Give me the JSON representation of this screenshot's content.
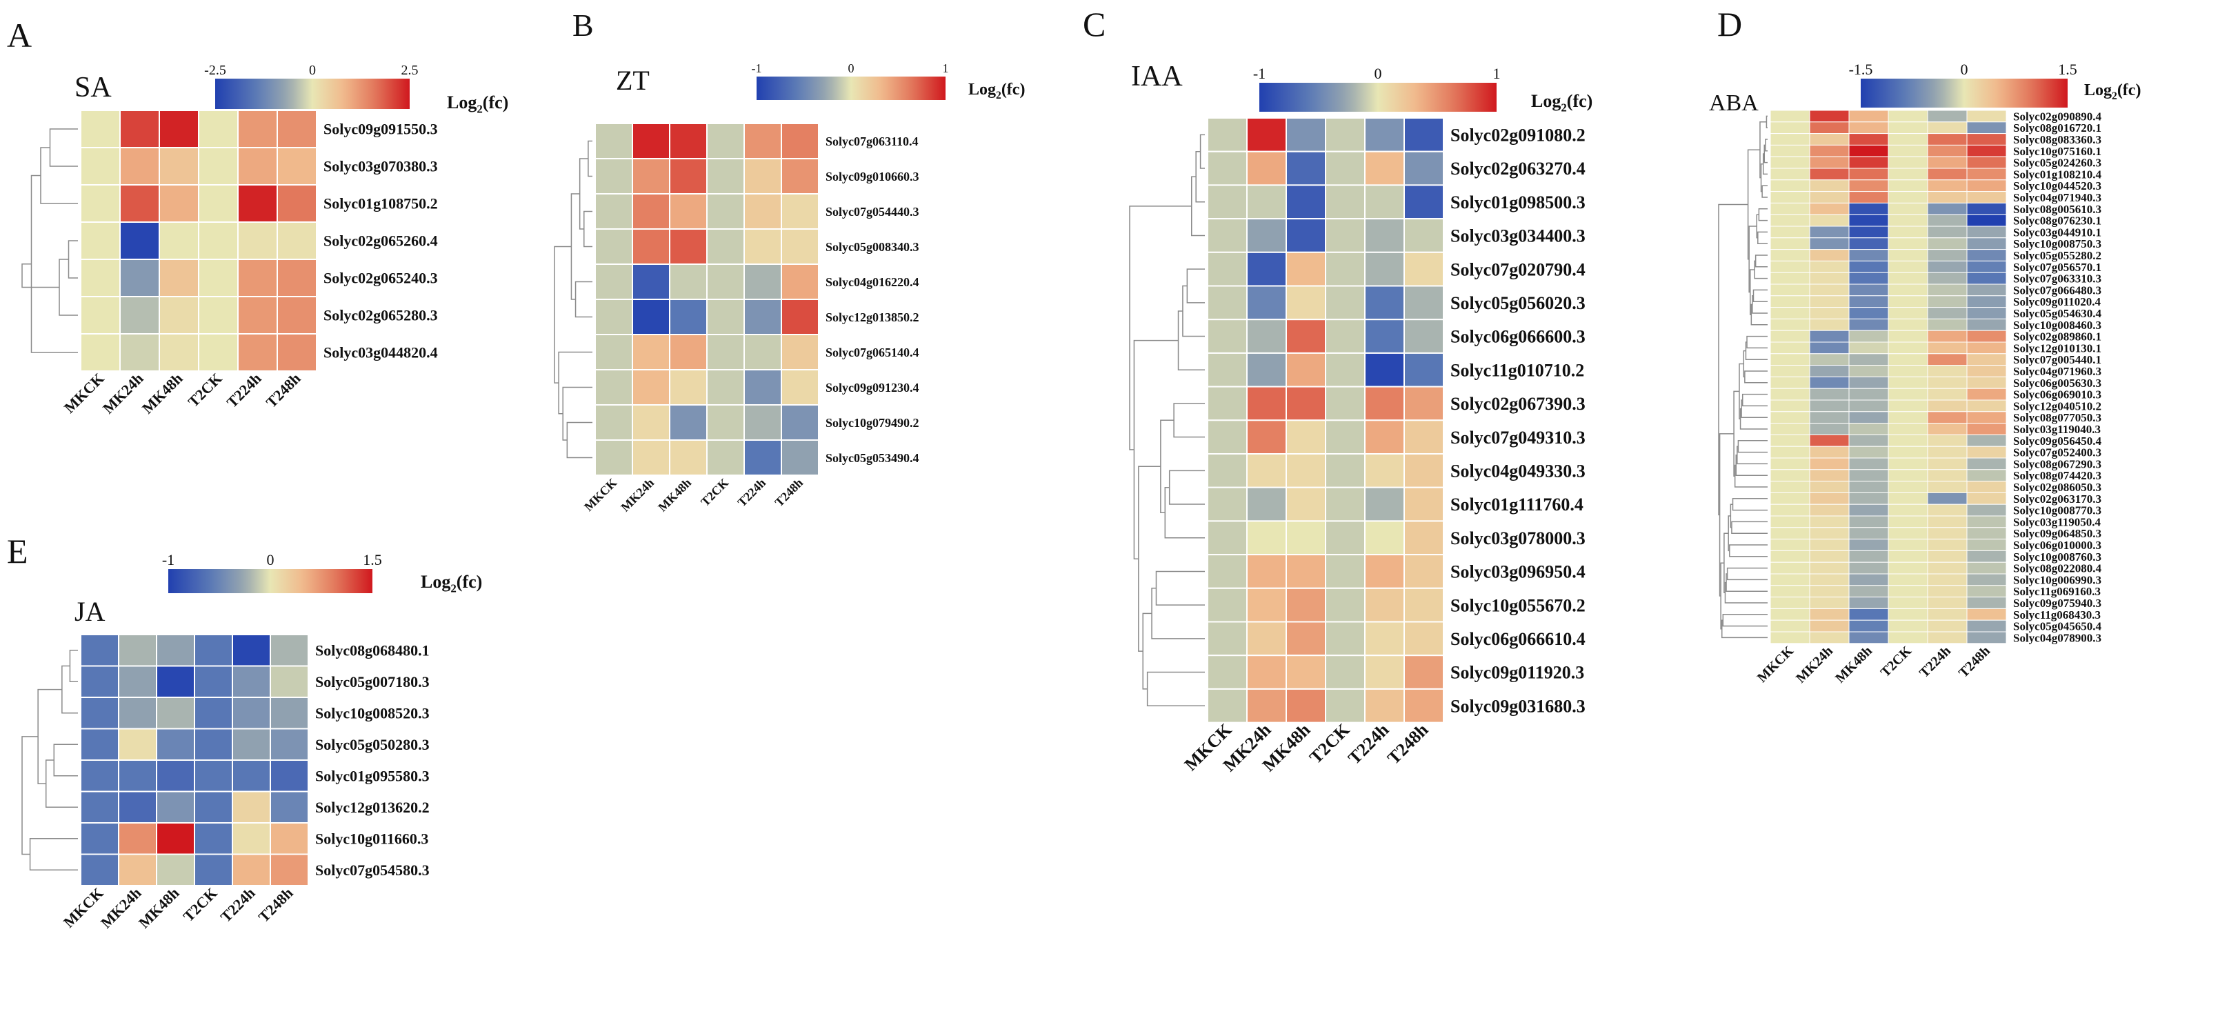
{
  "figure": {
    "column_labels": [
      "MKCK",
      "MK24h",
      "MK48h",
      "T2CK",
      "T224h",
      "T248h"
    ],
    "legend_label_prefix": "Log",
    "legend_label_sub": "2",
    "legend_label_suffix": "(fc)"
  },
  "chart_data": [
    {
      "type": "heatmap",
      "panel_letter": "A",
      "title": "SA",
      "scale": {
        "min": -2.5,
        "mid": 0,
        "max": 2.5,
        "tick_labels": [
          "-2.5",
          "0",
          "2.5"
        ]
      },
      "columns": [
        "MKCK",
        "MK24h",
        "MK48h",
        "T2CK",
        "T224h",
        "T248h"
      ],
      "rows": [
        "Solyc09g091550.3",
        "Solyc03g070380.3",
        "Solyc01g108750.2",
        "Solyc02g065260.4",
        "Solyc02g065240.3",
        "Solyc02g065280.3",
        "Solyc03g044820.4"
      ],
      "values": [
        [
          0,
          2.1,
          2.4,
          0,
          1.2,
          1.3
        ],
        [
          0,
          1.0,
          0.6,
          0,
          1.0,
          0.8
        ],
        [
          0,
          1.9,
          0.9,
          0,
          2.4,
          1.6
        ],
        [
          0,
          -2.4,
          0,
          0,
          0.1,
          0.1
        ],
        [
          0,
          -0.9,
          0.6,
          0,
          1.2,
          1.3
        ],
        [
          0,
          -0.4,
          0.2,
          0,
          1.2,
          1.3
        ],
        [
          0,
          -0.2,
          0.1,
          0,
          1.2,
          1.3
        ]
      ],
      "dendrogram_rows": [
        [
          3,
          4
        ],
        [
          3,
          5
        ],
        [
          0,
          1
        ],
        [
          2,
          0
        ],
        [
          6,
          2
        ],
        [
          4,
          6
        ]
      ]
    },
    {
      "type": "heatmap",
      "panel_letter": "B",
      "title": "ZT",
      "scale": {
        "min": -1,
        "mid": 0,
        "max": 1,
        "tick_labels": [
          "-1",
          "0",
          "1"
        ]
      },
      "columns": [
        "MKCK",
        "MK24h",
        "MK48h",
        "T2CK",
        "T224h",
        "T248h"
      ],
      "rows": [
        "Solyc07g063110.4",
        "Solyc09g010660.3",
        "Solyc07g054440.3",
        "Solyc05g008340.3",
        "Solyc04g016220.4",
        "Solyc12g013850.2",
        "Solyc07g065140.4",
        "Solyc09g091230.4",
        "Solyc10g079490.2",
        "Solyc05g053490.4"
      ],
      "values": [
        [
          -0.1,
          0.95,
          0.9,
          -0.1,
          0.5,
          0.6
        ],
        [
          -0.1,
          0.5,
          0.75,
          -0.1,
          0.2,
          0.5
        ],
        [
          -0.1,
          0.6,
          0.4,
          -0.1,
          0.2,
          0.1
        ],
        [
          -0.1,
          0.65,
          0.75,
          -0.1,
          0.1,
          0.1
        ],
        [
          -0.1,
          -0.8,
          -0.1,
          -0.1,
          -0.2,
          0.4
        ],
        [
          -0.1,
          -0.95,
          -0.6,
          -0.1,
          -0.4,
          0.8
        ],
        [
          -0.1,
          0.3,
          0.4,
          -0.1,
          -0.1,
          0.2
        ],
        [
          -0.1,
          0.3,
          0.1,
          -0.1,
          -0.4,
          0.1
        ],
        [
          -0.1,
          0.1,
          -0.4,
          -0.1,
          -0.2,
          -0.4
        ],
        [
          -0.1,
          0.1,
          0.1,
          -0.1,
          -0.6,
          -0.3
        ]
      ],
      "dendrogram_rows": [
        [
          0,
          1
        ],
        [
          2,
          3
        ],
        [
          0,
          2
        ],
        [
          4,
          5
        ],
        [
          0,
          4
        ],
        [
          8,
          9
        ],
        [
          7,
          8
        ],
        [
          6,
          7
        ],
        [
          0,
          6
        ]
      ]
    },
    {
      "type": "heatmap",
      "panel_letter": "C",
      "title": "IAA",
      "scale": {
        "min": -1,
        "mid": 0,
        "max": 1,
        "tick_labels": [
          "-1",
          "0",
          "1"
        ]
      },
      "columns": [
        "MKCK",
        "MK24h",
        "MK48h",
        "T2CK",
        "T224h",
        "T248h"
      ],
      "rows": [
        "Solyc02g091080.2",
        "Solyc02g063270.4",
        "Solyc01g098500.3",
        "Solyc03g034400.3",
        "Solyc07g020790.4",
        "Solyc05g056020.3",
        "Solyc06g066600.3",
        "Solyc11g010710.2",
        "Solyc02g067390.3",
        "Solyc07g049310.3",
        "Solyc04g049330.3",
        "Solyc01g111760.4",
        "Solyc03g078000.3",
        "Solyc03g096950.4",
        "Solyc10g055670.2",
        "Solyc06g066610.4",
        "Solyc09g011920.3",
        "Solyc09g031680.3"
      ],
      "values": [
        [
          -0.1,
          0.95,
          -0.4,
          -0.1,
          -0.4,
          -0.8
        ],
        [
          -0.1,
          0.4,
          -0.7,
          -0.1,
          0.3,
          -0.4
        ],
        [
          -0.1,
          -0.1,
          -0.8,
          -0.1,
          -0.1,
          -0.8
        ],
        [
          -0.1,
          -0.3,
          -0.8,
          -0.1,
          -0.2,
          -0.1
        ],
        [
          -0.1,
          -0.8,
          0.3,
          -0.1,
          -0.2,
          0.1
        ],
        [
          -0.1,
          -0.5,
          0.1,
          -0.1,
          -0.6,
          -0.2
        ],
        [
          -0.1,
          -0.2,
          0.7,
          -0.1,
          -0.6,
          -0.2
        ],
        [
          -0.1,
          -0.3,
          0.4,
          -0.1,
          -0.95,
          -0.6
        ],
        [
          -0.1,
          0.7,
          0.7,
          -0.1,
          0.6,
          0.45
        ],
        [
          -0.1,
          0.6,
          0.1,
          -0.1,
          0.4,
          0.2
        ],
        [
          -0.1,
          0.1,
          0.1,
          -0.1,
          0.1,
          0.2
        ],
        [
          -0.1,
          -0.2,
          0.1,
          -0.1,
          -0.2,
          0.2
        ],
        [
          -0.1,
          0,
          0,
          -0.1,
          0,
          0.2
        ],
        [
          -0.1,
          0.35,
          0.35,
          -0.1,
          0.35,
          0.2
        ],
        [
          -0.1,
          0.3,
          0.45,
          -0.1,
          0.2,
          0.15
        ],
        [
          -0.1,
          0.2,
          0.45,
          -0.1,
          0.1,
          0.15
        ],
        [
          -0.1,
          0.35,
          0.3,
          -0.1,
          0.1,
          0.45
        ],
        [
          -0.1,
          0.45,
          0.55,
          -0.1,
          0.25,
          0.4
        ]
      ],
      "dendrogram_rows": [
        [
          0,
          1
        ],
        [
          0,
          2
        ],
        [
          0,
          3
        ],
        [
          4,
          5
        ],
        [
          4,
          6
        ],
        [
          4,
          7
        ],
        [
          8,
          9
        ],
        [
          10,
          11
        ],
        [
          10,
          12
        ],
        [
          8,
          10
        ],
        [
          13,
          14
        ],
        [
          13,
          15
        ],
        [
          16,
          17
        ],
        [
          13,
          16
        ],
        [
          8,
          13
        ],
        [
          4,
          8
        ],
        [
          0,
          4
        ]
      ]
    },
    {
      "type": "heatmap",
      "panel_letter": "D",
      "title": "ABA",
      "scale": {
        "min": -1.5,
        "mid": 0,
        "max": 1.5,
        "tick_labels": [
          "-1.5",
          "0",
          "1.5"
        ]
      },
      "columns": [
        "MKCK",
        "MK24h",
        "MK48h",
        "T2CK",
        "T224h",
        "T248h"
      ],
      "rows": [
        "Solyc02g090890.4",
        "Solyc08g016720.1",
        "Solyc08g083360.3",
        "Solyc10g075160.1",
        "Solyc05g024260.3",
        "Solyc01g108210.4",
        "Solyc10g044520.3",
        "Solyc04g071940.3",
        "Solyc08g005610.3",
        "Solyc08g076230.1",
        "Solyc03g044910.1",
        "Solyc10g008750.3",
        "Solyc05g055280.2",
        "Solyc07g056570.1",
        "Solyc07g063310.3",
        "Solyc07g066480.3",
        "Solyc09g011020.4",
        "Solyc05g054630.4",
        "Solyc10g008460.3",
        "Solyc02g089860.1",
        "Solyc12g010130.1",
        "Solyc07g005440.1",
        "Solyc04g071960.3",
        "Solyc06g005630.3",
        "Solyc06g069010.3",
        "Solyc12g040510.2",
        "Solyc08g077050.3",
        "Solyc03g119040.3",
        "Solyc09g056450.4",
        "Solyc07g052400.3",
        "Solyc08g067290.3",
        "Solyc08g074420.3",
        "Solyc02g086050.3",
        "Solyc02g063170.3",
        "Solyc10g008770.3",
        "Solyc03g119050.4",
        "Solyc09g064850.3",
        "Solyc06g010000.3",
        "Solyc10g008760.3",
        "Solyc08g022080.4",
        "Solyc10g006990.3",
        "Solyc11g069160.3",
        "Solyc09g075940.3",
        "Solyc11g068430.3",
        "Solyc05g045650.4",
        "Solyc04g078900.3"
      ],
      "values": [
        [
          0,
          1.3,
          0.5,
          0,
          -0.3,
          0.1
        ],
        [
          0,
          1.0,
          0.5,
          0,
          0.1,
          -0.6
        ],
        [
          0,
          0.3,
          1.2,
          0,
          1.0,
          1.1
        ],
        [
          0,
          0.8,
          1.5,
          0,
          0.8,
          1.3
        ],
        [
          0,
          0.7,
          1.3,
          0,
          0.6,
          1.0
        ],
        [
          0,
          1.1,
          1.0,
          0,
          0.9,
          0.8
        ],
        [
          0,
          0.2,
          0.8,
          0,
          0.5,
          0.6
        ],
        [
          0,
          0.2,
          0.9,
          0,
          0.3,
          0.3
        ],
        [
          0,
          0.4,
          -1.3,
          0,
          -0.6,
          -1.3
        ],
        [
          0,
          0.1,
          -1.4,
          0,
          -0.3,
          -1.5
        ],
        [
          0,
          -0.6,
          -1.3,
          0,
          -0.3,
          -0.4
        ],
        [
          0,
          -0.6,
          -1.1,
          0,
          -0.2,
          -0.5
        ],
        [
          0,
          0.3,
          -0.7,
          0,
          -0.3,
          -0.7
        ],
        [
          0,
          0.1,
          -0.9,
          0,
          -0.4,
          -0.8
        ],
        [
          0,
          0.1,
          -0.9,
          0,
          -0.3,
          -0.9
        ],
        [
          0,
          0.1,
          -0.7,
          0,
          -0.2,
          -0.4
        ],
        [
          0,
          0.1,
          -0.7,
          0,
          -0.2,
          -0.5
        ],
        [
          0,
          0.1,
          -0.8,
          0,
          -0.3,
          -0.5
        ],
        [
          0,
          0.1,
          -0.7,
          0,
          -0.2,
          -0.4
        ],
        [
          0,
          -0.7,
          -0.2,
          0,
          0.6,
          0.8
        ],
        [
          0,
          -0.7,
          -0.1,
          0,
          0.4,
          0.5
        ],
        [
          0,
          -0.2,
          -0.3,
          0,
          0.8,
          0.3
        ],
        [
          0,
          -0.4,
          -0.2,
          0,
          0.1,
          0.3
        ],
        [
          0,
          -0.7,
          -0.4,
          0,
          0.1,
          0.2
        ],
        [
          0,
          -0.3,
          -0.3,
          0,
          0.1,
          0.6
        ],
        [
          0,
          -0.3,
          -0.3,
          0,
          0.2,
          0.2
        ],
        [
          0,
          -0.3,
          -0.4,
          0,
          0.7,
          0.6
        ],
        [
          0,
          -0.3,
          -0.2,
          0,
          0.4,
          0.7
        ],
        [
          0,
          1.1,
          -0.3,
          0,
          0.1,
          -0.3
        ],
        [
          0,
          0.3,
          -0.2,
          0,
          0.1,
          0.2
        ],
        [
          0,
          0.4,
          -0.3,
          0,
          0.1,
          -0.3
        ],
        [
          0,
          0.3,
          -0.3,
          0,
          0.1,
          -0.2
        ],
        [
          0,
          0.2,
          -0.3,
          0,
          0.1,
          0.2
        ],
        [
          0,
          0.3,
          -0.3,
          0,
          -0.6,
          0.2
        ],
        [
          0,
          0.2,
          -0.4,
          0,
          0.1,
          -0.3
        ],
        [
          0,
          0.1,
          -0.3,
          0,
          0.1,
          -0.2
        ],
        [
          0,
          0.1,
          -0.3,
          0,
          0.1,
          -0.2
        ],
        [
          0,
          0.1,
          -0.4,
          0,
          0.1,
          -0.2
        ],
        [
          0,
          0.1,
          -0.3,
          0,
          0.1,
          -0.3
        ],
        [
          0,
          0.1,
          -0.3,
          0,
          0.1,
          -0.2
        ],
        [
          0,
          0.1,
          -0.4,
          0,
          0.1,
          -0.3
        ],
        [
          0,
          0.1,
          -0.3,
          0,
          0.1,
          -0.2
        ],
        [
          0,
          0.1,
          -0.4,
          0,
          0.1,
          -0.3
        ],
        [
          0,
          0.3,
          -0.9,
          0,
          0.1,
          0.4
        ],
        [
          0,
          0.3,
          -0.8,
          0,
          0.1,
          -0.4
        ],
        [
          0,
          0.1,
          -0.7,
          0,
          0.1,
          -0.4
        ]
      ],
      "dendrogram_rows": [
        [
          0,
          1
        ],
        [
          2,
          3
        ],
        [
          2,
          4
        ],
        [
          2,
          5
        ],
        [
          6,
          7
        ],
        [
          2,
          6
        ],
        [
          0,
          2
        ],
        [
          8,
          9
        ],
        [
          10,
          11
        ],
        [
          8,
          10
        ],
        [
          12,
          13
        ],
        [
          12,
          14
        ],
        [
          15,
          16
        ],
        [
          15,
          17
        ],
        [
          15,
          18
        ],
        [
          12,
          15
        ],
        [
          8,
          12
        ],
        [
          0,
          8
        ],
        [
          19,
          20
        ],
        [
          19,
          21
        ],
        [
          22,
          23
        ],
        [
          19,
          22
        ],
        [
          24,
          25
        ],
        [
          24,
          26
        ],
        [
          24,
          27
        ],
        [
          19,
          24
        ],
        [
          28,
          29
        ],
        [
          28,
          30
        ],
        [
          28,
          31
        ],
        [
          28,
          32
        ],
        [
          19,
          28
        ],
        [
          33,
          34
        ],
        [
          35,
          36
        ],
        [
          33,
          35
        ],
        [
          37,
          38
        ],
        [
          33,
          37
        ],
        [
          39,
          40
        ],
        [
          39,
          41
        ],
        [
          39,
          42
        ],
        [
          33,
          39
        ],
        [
          43,
          44
        ],
        [
          43,
          45
        ],
        [
          33,
          43
        ],
        [
          19,
          33
        ],
        [
          0,
          19
        ]
      ]
    },
    {
      "type": "heatmap",
      "panel_letter": "E",
      "title": "JA",
      "scale": {
        "min": -1,
        "mid": 0,
        "max": 1.5,
        "tick_labels": [
          "-1",
          "0",
          "1.5"
        ]
      },
      "columns": [
        "MKCK",
        "MK24h",
        "MK48h",
        "T2CK",
        "T224h",
        "T248h"
      ],
      "rows": [
        "Solyc08g068480.1",
        "Solyc05g007180.3",
        "Solyc10g008520.3",
        "Solyc05g050280.3",
        "Solyc01g095580.3",
        "Solyc12g013620.2",
        "Solyc10g011660.3",
        "Solyc07g054580.3"
      ],
      "values": [
        [
          -0.6,
          -0.2,
          -0.3,
          -0.6,
          -0.95,
          -0.2
        ],
        [
          -0.6,
          -0.3,
          -0.95,
          -0.6,
          -0.4,
          -0.1
        ],
        [
          -0.6,
          -0.3,
          -0.2,
          -0.6,
          -0.4,
          -0.3
        ],
        [
          -0.6,
          0.1,
          -0.5,
          -0.6,
          -0.3,
          -0.4
        ],
        [
          -0.6,
          -0.6,
          -0.7,
          -0.6,
          -0.6,
          -0.7
        ],
        [
          -0.6,
          -0.7,
          -0.4,
          -0.6,
          0.2,
          -0.5
        ],
        [
          -0.6,
          0.8,
          1.5,
          -0.6,
          0.1,
          0.5
        ],
        [
          -0.6,
          0.4,
          -0.1,
          -0.6,
          0.5,
          0.7
        ]
      ],
      "dendrogram_rows": [
        [
          0,
          1
        ],
        [
          0,
          2
        ],
        [
          3,
          4
        ],
        [
          3,
          5
        ],
        [
          0,
          3
        ],
        [
          6,
          7
        ],
        [
          0,
          6
        ]
      ]
    }
  ]
}
